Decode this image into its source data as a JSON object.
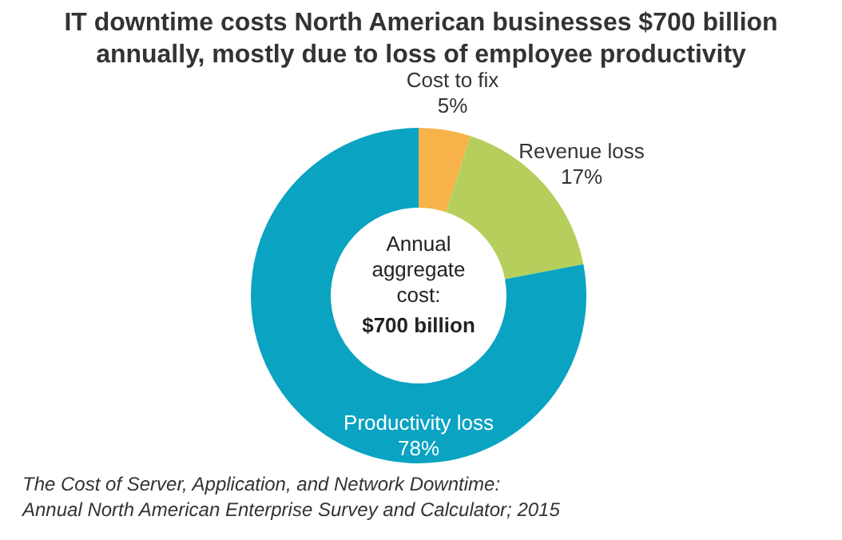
{
  "chart_data": {
    "type": "donut",
    "title": "IT downtime costs North American businesses $700 billion annually, mostly due to loss of employee productivity",
    "categories": [
      "Cost to fix",
      "Revenue loss",
      "Productivity loss"
    ],
    "values": [
      5,
      17,
      78
    ],
    "value_labels": [
      "5%",
      "17%",
      "78%"
    ],
    "colors": [
      "#f7b24a",
      "#b6cf5c",
      "#0aa3c2"
    ],
    "legend": false,
    "annotations": [
      "Annual aggregate cost:",
      "$700 billion",
      "The Cost of Server, Application, and Network Downtime: Annual North American Enterprise Survey and Calculator; 2015"
    ]
  }
}
